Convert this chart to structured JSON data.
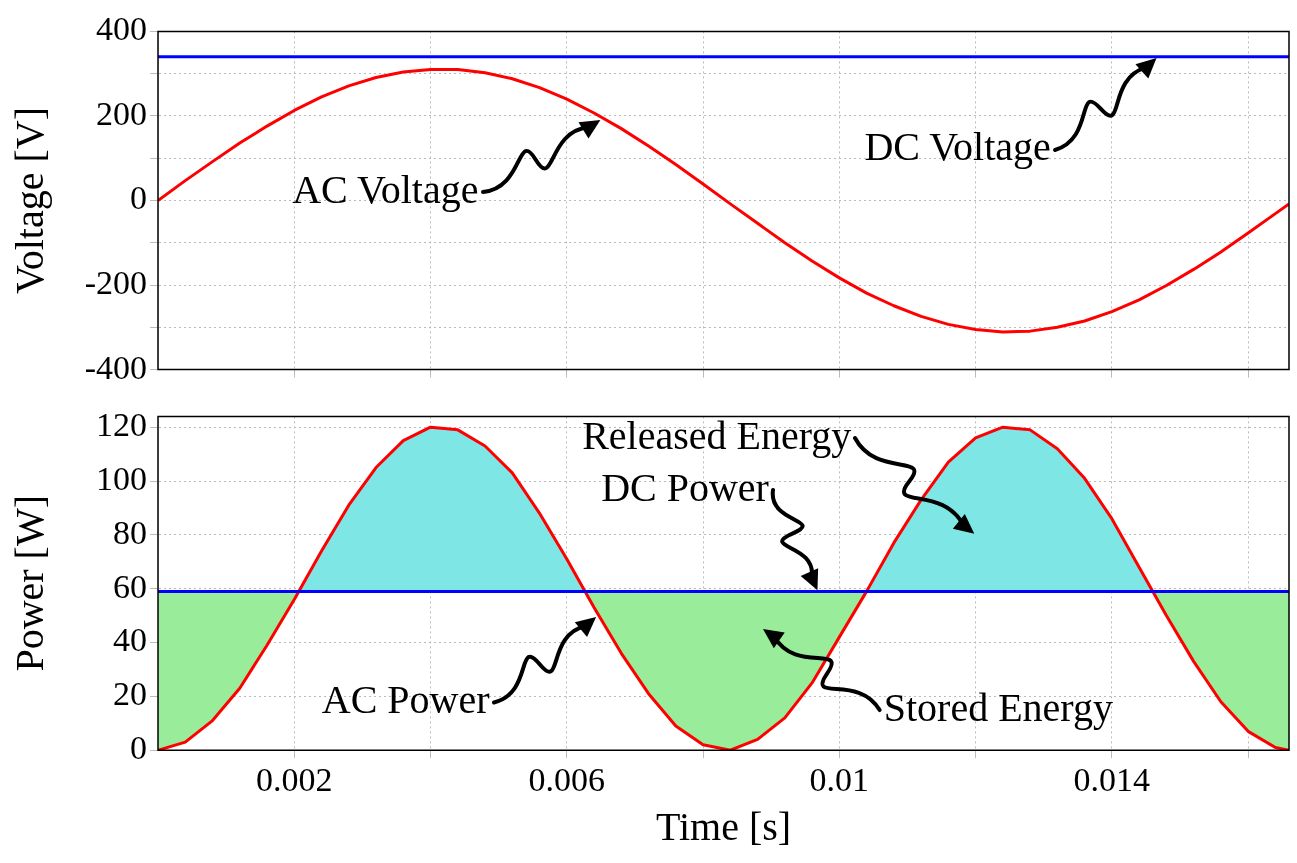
{
  "chart_data": [
    {
      "type": "line",
      "ylabel": "Voltage [V]",
      "x": [
        0,
        0.0004,
        0.0008,
        0.0012,
        0.0016,
        0.002,
        0.0024,
        0.0028,
        0.0032,
        0.0036,
        0.004,
        0.0044,
        0.0048,
        0.0052,
        0.0056,
        0.006,
        0.0064,
        0.0068,
        0.0072,
        0.0076,
        0.008,
        0.0084,
        0.0088,
        0.0092,
        0.0096,
        0.01,
        0.0104,
        0.0108,
        0.0112,
        0.0116,
        0.012,
        0.0124,
        0.0128,
        0.0132,
        0.0136,
        0.014,
        0.0144,
        0.0148,
        0.0152,
        0.0156,
        0.016,
        0.0164,
        0.0166
      ],
      "series": [
        {
          "color": "#ff0000",
          "values": [
            0,
            47,
            92,
            136,
            176,
            213,
            245,
            271,
            291,
            304,
            310,
            310,
            302,
            288,
            267,
            240,
            207,
            170,
            129,
            85,
            39,
            -8,
            -54,
            -100,
            -143,
            -183,
            -219,
            -249,
            -274,
            -293,
            -305,
            -311,
            -309,
            -300,
            -285,
            -263,
            -235,
            -201,
            -163,
            -122,
            -77,
            -31,
            -8
          ]
        },
        {
          "color": "#0000ff",
          "values": [
            340,
            340,
            340,
            340,
            340,
            340,
            340,
            340,
            340,
            340,
            340,
            340,
            340,
            340,
            340,
            340,
            340,
            340,
            340,
            340,
            340,
            340,
            340,
            340,
            340,
            340,
            340,
            340,
            340,
            340,
            340,
            340,
            340,
            340,
            340,
            340,
            340,
            340,
            340,
            340,
            340,
            340,
            340
          ]
        }
      ],
      "xlim": [
        0,
        0.0166
      ],
      "xticks": [
        {
          "value": 0.002,
          "label": null
        },
        {
          "value": 0.004,
          "label": null
        },
        {
          "value": 0.006,
          "label": null
        },
        {
          "value": 0.008,
          "label": null
        },
        {
          "value": 0.01,
          "label": null
        },
        {
          "value": 0.012,
          "label": null
        },
        {
          "value": 0.014,
          "label": null
        },
        {
          "value": 0.016,
          "label": null
        }
      ],
      "ylim": [
        -400,
        400
      ],
      "yticks": [
        -400,
        {
          "value": -300,
          "label": null
        },
        -200,
        {
          "value": -100,
          "label": null
        },
        0,
        {
          "value": 100,
          "label": null
        },
        200,
        {
          "value": 300,
          "label": null
        },
        400
      ],
      "tick_labels": "y",
      "grid": true,
      "legend": false,
      "annotations": [
        "AC Voltage",
        "DC Voltage"
      ]
    },
    {
      "type": "line",
      "ylabel": "Power [W]",
      "xlabel": "Time [s]",
      "x": [
        0,
        0.0004,
        0.0008,
        0.0012,
        0.0016,
        0.002,
        0.0024,
        0.0028,
        0.0032,
        0.0036,
        0.004,
        0.0044,
        0.0048,
        0.0052,
        0.0056,
        0.006,
        0.0064,
        0.0068,
        0.0072,
        0.0076,
        0.008,
        0.0084,
        0.0088,
        0.0092,
        0.0096,
        0.01,
        0.0104,
        0.0108,
        0.0112,
        0.0116,
        0.012,
        0.0124,
        0.0128,
        0.0132,
        0.0136,
        0.014,
        0.0144,
        0.0148,
        0.0152,
        0.0156,
        0.016,
        0.0164,
        0.0166
      ],
      "series": [
        {
          "color": "#ff0000",
          "values": [
            0,
            3,
            11,
            23,
            39,
            56,
            74,
            91,
            105,
            115,
            120,
            119,
            113,
            103,
            88,
            71,
            53,
            36,
            21,
            9,
            2,
            0,
            4,
            12,
            25,
            42,
            59,
            77,
            93,
            107,
            116,
            120,
            119,
            112,
            101,
            86,
            68,
            50,
            33,
            18,
            7,
            1,
            0
          ]
        },
        {
          "color": "#0000ff",
          "values": [
            59,
            59,
            59,
            59,
            59,
            59,
            59,
            59,
            59,
            59,
            59,
            59,
            59,
            59,
            59,
            59,
            59,
            59,
            59,
            59,
            59,
            59,
            59,
            59,
            59,
            59,
            59,
            59,
            59,
            59,
            59,
            59,
            59,
            59,
            59,
            59,
            59,
            59,
            59,
            59,
            59,
            59,
            59
          ]
        }
      ],
      "xlim": [
        0,
        0.0166
      ],
      "xticks": [
        0.002,
        {
          "value": 0.004,
          "label": null
        },
        0.006,
        {
          "value": 0.008,
          "label": null
        },
        0.01,
        {
          "value": 0.012,
          "label": null
        },
        0.014,
        {
          "value": 0.016,
          "label": null
        }
      ],
      "ylim": [
        0,
        124
      ],
      "yticks": [
        0,
        20,
        40,
        60,
        80,
        100,
        120
      ],
      "grid": true,
      "legend": false,
      "annotations": [
        "Released Energy",
        "DC Power",
        "AC Power",
        "Stored Energy"
      ]
    }
  ]
}
